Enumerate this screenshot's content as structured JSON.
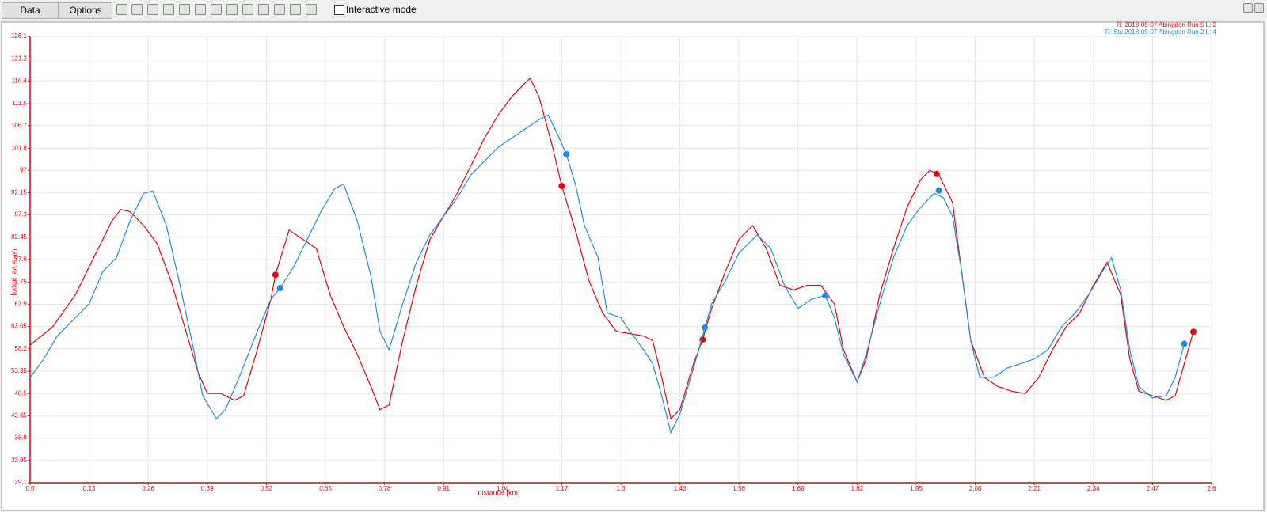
{
  "toolbar": {
    "buttons": [
      "Data",
      "Options"
    ],
    "checkbox": "Interactive mode"
  },
  "chart_data": {
    "type": "line",
    "xlabel": "distance [km]",
    "ylabel": "GPS Vel [mph]",
    "xlim": [
      0,
      2.6
    ],
    "xticks": [
      {
        "value": 0,
        "label": "0.0"
      },
      0.13,
      0.26,
      0.39,
      0.52,
      0.65,
      0.78,
      0.91,
      1.04,
      1.17,
      1.3,
      1.43,
      1.56,
      1.69,
      1.82,
      1.95,
      2.08,
      2.21,
      2.34,
      2.47,
      2.6
    ],
    "ylim": [
      29.1,
      126.1
    ],
    "yticks": [
      29.1,
      33.95,
      38.8,
      43.65,
      48.5,
      53.35,
      58.2,
      63.05,
      67.9,
      72.75,
      77.6,
      82.45,
      87.3,
      92.15,
      97,
      101.8,
      106.7,
      111.5,
      116.4,
      121.2,
      126.1
    ],
    "grid": true,
    "series": [
      {
        "name": "R: 2018-09-07 Abingdon Run 5  L: 2",
        "color": "#e8000b",
        "x": [
          0,
          0.05,
          0.1,
          0.15,
          0.18,
          0.2,
          0.22,
          0.25,
          0.28,
          0.31,
          0.34,
          0.37,
          0.39,
          0.42,
          0.45,
          0.47,
          0.5,
          0.53,
          0.54,
          0.57,
          0.6,
          0.63,
          0.66,
          0.69,
          0.72,
          0.75,
          0.77,
          0.79,
          0.82,
          0.85,
          0.88,
          0.91,
          0.94,
          0.97,
          1.0,
          1.03,
          1.06,
          1.09,
          1.1,
          1.12,
          1.15,
          1.17,
          1.2,
          1.23,
          1.26,
          1.29,
          1.32,
          1.35,
          1.37,
          1.39,
          1.41,
          1.43,
          1.46,
          1.48,
          1.5,
          1.53,
          1.56,
          1.59,
          1.62,
          1.65,
          1.68,
          1.71,
          1.74,
          1.77,
          1.79,
          1.82,
          1.84,
          1.87,
          1.9,
          1.93,
          1.96,
          1.98,
          2.0,
          2.03,
          2.05,
          2.07,
          2.1,
          2.13,
          2.16,
          2.19,
          2.22,
          2.25,
          2.28,
          2.31,
          2.34,
          2.37,
          2.4,
          2.42,
          2.44,
          2.47,
          2.5,
          2.52,
          2.54,
          2.56
        ],
        "values": [
          59,
          63,
          70,
          80,
          86,
          88.5,
          88,
          85,
          81,
          73,
          63,
          53,
          48.5,
          48.5,
          47,
          48,
          58,
          69,
          74.3,
          84,
          82,
          80,
          70,
          63,
          57,
          50,
          45,
          46,
          60,
          72,
          82,
          87,
          92,
          98,
          104,
          109,
          113,
          116,
          117,
          113,
          102,
          93.6,
          84,
          73,
          66,
          62,
          61.5,
          61,
          60,
          52,
          43,
          45,
          55,
          60.2,
          67,
          75,
          82,
          85,
          80,
          72,
          71,
          72,
          72,
          68,
          58,
          51,
          56,
          70,
          80,
          89,
          95,
          97,
          96,
          90,
          75,
          60,
          52,
          50,
          49,
          48.5,
          52,
          58,
          63,
          66,
          72,
          77,
          70,
          56,
          49,
          48,
          47,
          48,
          55,
          61.9
        ],
        "marker_x": [
          0.54,
          1.17,
          1.48,
          1.995,
          2.56
        ],
        "marker_values": [
          74.3,
          93.6,
          60.2,
          96.2,
          61.9
        ]
      },
      {
        "name": "R: Stu 2018-09-07 Abingdon Run 2  L: 4",
        "color": "#1a8fe3",
        "x": [
          0,
          0.03,
          0.06,
          0.1,
          0.13,
          0.16,
          0.19,
          0.22,
          0.25,
          0.27,
          0.3,
          0.33,
          0.36,
          0.38,
          0.41,
          0.43,
          0.46,
          0.5,
          0.53,
          0.55,
          0.58,
          0.61,
          0.64,
          0.67,
          0.69,
          0.72,
          0.75,
          0.77,
          0.79,
          0.82,
          0.85,
          0.88,
          0.91,
          0.94,
          0.97,
          1.0,
          1.03,
          1.06,
          1.09,
          1.12,
          1.14,
          1.16,
          1.18,
          1.2,
          1.22,
          1.25,
          1.27,
          1.3,
          1.32,
          1.35,
          1.37,
          1.39,
          1.41,
          1.43,
          1.46,
          1.485,
          1.5,
          1.53,
          1.56,
          1.6,
          1.63,
          1.66,
          1.69,
          1.72,
          1.75,
          1.77,
          1.79,
          1.82,
          1.84,
          1.87,
          1.9,
          1.93,
          1.96,
          1.99,
          2.01,
          2.03,
          2.05,
          2.07,
          2.09,
          2.12,
          2.15,
          2.18,
          2.21,
          2.24,
          2.27,
          2.3,
          2.33,
          2.36,
          2.38,
          2.4,
          2.42,
          2.44,
          2.47,
          2.5,
          2.52,
          2.54
        ],
        "values": [
          52,
          56,
          61,
          65,
          68,
          75,
          78,
          86,
          92,
          92.5,
          85,
          72,
          58,
          48,
          43,
          45,
          52,
          62,
          69,
          71.4,
          76,
          82,
          88,
          93,
          94,
          86,
          74,
          62,
          58,
          68,
          77,
          83,
          87,
          91,
          96,
          99,
          102,
          104,
          106,
          108,
          109,
          105,
          100.5,
          94,
          85,
          78,
          66,
          65,
          62,
          58,
          55,
          48,
          40,
          44,
          54,
          62.8,
          68,
          73,
          79,
          83,
          80,
          72,
          67,
          69,
          69.8,
          65,
          57,
          51,
          57,
          68,
          78,
          85,
          89,
          92,
          91,
          87,
          75,
          60,
          52,
          52,
          54,
          55,
          56,
          58,
          63,
          66,
          70,
          75,
          78,
          71,
          58,
          50,
          47.5,
          48,
          52,
          59.3
        ],
        "marker_x": [
          0.55,
          1.18,
          1.485,
          1.75,
          2.0,
          2.54
        ],
        "marker_values": [
          71.4,
          100.5,
          62.8,
          69.8,
          92.6,
          59.3
        ]
      }
    ]
  }
}
